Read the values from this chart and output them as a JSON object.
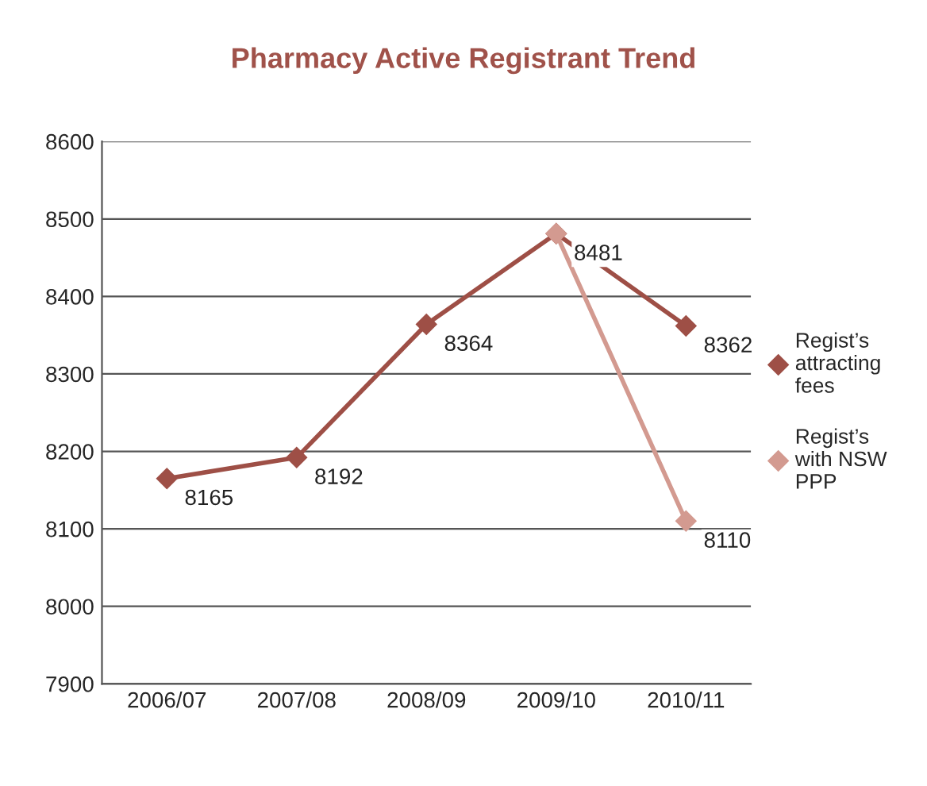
{
  "chart_data": {
    "type": "line",
    "title": "Pharmacy Active Registrant Trend",
    "categories": [
      "2006/07",
      "2007/08",
      "2008/09",
      "2009/10",
      "2010/11"
    ],
    "series": [
      {
        "name": "Regist’s attracting fees",
        "color": "#9e4f46",
        "values": [
          8165,
          8192,
          8364,
          8481,
          8362
        ],
        "value_labels": [
          "8165",
          "8192",
          "8364",
          "8481",
          "8362"
        ]
      },
      {
        "name": "Regist’s with NSW PPP",
        "color": "#d39a90",
        "values": [
          null,
          null,
          null,
          8481,
          8110
        ],
        "value_labels": [
          null,
          null,
          null,
          null,
          "8110"
        ]
      }
    ],
    "ylim": [
      7900,
      8600
    ],
    "yticks": [
      7900,
      8000,
      8100,
      8200,
      8300,
      8400,
      8500,
      8600
    ],
    "grid": "y",
    "legend": "right",
    "marker": "diamond",
    "line_style": "solid"
  }
}
